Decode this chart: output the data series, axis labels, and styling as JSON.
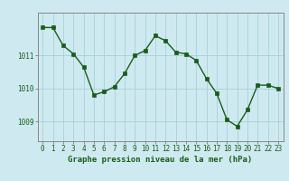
{
  "x": [
    0,
    1,
    2,
    3,
    4,
    5,
    6,
    7,
    8,
    9,
    10,
    11,
    12,
    13,
    14,
    15,
    16,
    17,
    18,
    19,
    20,
    21,
    22,
    23
  ],
  "y": [
    1011.85,
    1011.85,
    1011.3,
    1011.05,
    1010.65,
    1009.8,
    1009.9,
    1010.05,
    1010.45,
    1011.0,
    1011.15,
    1011.6,
    1011.45,
    1011.1,
    1011.05,
    1010.85,
    1010.3,
    1009.85,
    1009.05,
    1008.85,
    1009.35,
    1010.1,
    1010.1,
    1010.0
  ],
  "line_color": "#1a5c1a",
  "marker_color": "#1a5c1a",
  "bg_color": "#ceeaf0",
  "grid_color": "#aad4db",
  "axis_color": "#888888",
  "xlabel": "Graphe pression niveau de la mer (hPa)",
  "xlabel_color": "#1a5c1a",
  "tick_label_color": "#1a5c1a",
  "yticks": [
    1009,
    1010,
    1011
  ],
  "ylim": [
    1008.4,
    1012.3
  ],
  "xlim": [
    -0.5,
    23.5
  ],
  "xtick_labels": [
    "0",
    "1",
    "2",
    "3",
    "4",
    "5",
    "6",
    "7",
    "8",
    "9",
    "10",
    "11",
    "12",
    "13",
    "14",
    "15",
    "16",
    "17",
    "18",
    "19",
    "20",
    "21",
    "22",
    "23"
  ],
  "tick_fontsize": 5.5,
  "xlabel_fontsize": 6.5
}
